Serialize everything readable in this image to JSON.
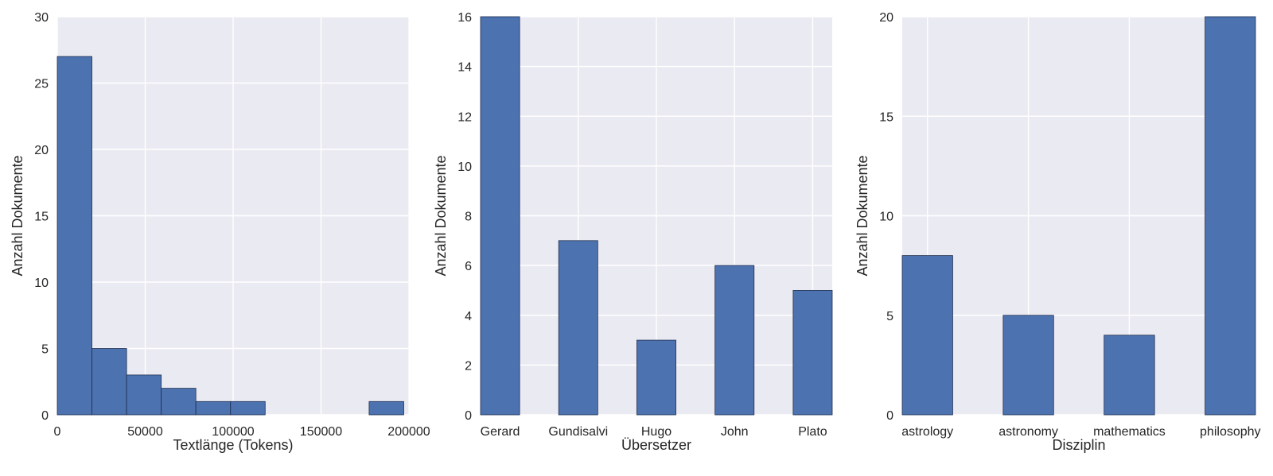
{
  "chart_data": [
    {
      "type": "bar",
      "subtype": "histogram",
      "xlabel": "Textlänge (Tokens)",
      "ylabel": "Anzahl Dokumente",
      "xlim": [
        0,
        200000
      ],
      "ylim": [
        0,
        30
      ],
      "xticks": [
        0,
        50000,
        100000,
        150000,
        200000
      ],
      "yticks": [
        0,
        5,
        10,
        15,
        20,
        25,
        30
      ],
      "bins": [
        {
          "start": 0,
          "end": 19705,
          "value": 27
        },
        {
          "start": 19705,
          "end": 39410,
          "value": 5
        },
        {
          "start": 39410,
          "end": 59115,
          "value": 3
        },
        {
          "start": 59115,
          "end": 78820,
          "value": 2
        },
        {
          "start": 78820,
          "end": 98525,
          "value": 1
        },
        {
          "start": 98525,
          "end": 118230,
          "value": 1
        },
        {
          "start": 118230,
          "end": 137935,
          "value": 0
        },
        {
          "start": 137935,
          "end": 157640,
          "value": 0
        },
        {
          "start": 157640,
          "end": 177345,
          "value": 0
        },
        {
          "start": 177345,
          "end": 197050,
          "value": 1
        }
      ],
      "grid": true,
      "bar_color": "#4c72b0"
    },
    {
      "type": "bar",
      "xlabel": "Übersetzer",
      "ylabel": "Anzahl Dokumente",
      "categories": [
        "Gerard",
        "Gundisalvi",
        "Hugo",
        "John",
        "Plato"
      ],
      "values": [
        16,
        7,
        3,
        6,
        5
      ],
      "ylim": [
        0,
        16
      ],
      "yticks": [
        0,
        2,
        4,
        6,
        8,
        10,
        12,
        14,
        16
      ],
      "grid": true,
      "bar_color": "#4c72b0"
    },
    {
      "type": "bar",
      "xlabel": "Disziplin",
      "ylabel": "Anzahl Dokumente",
      "categories": [
        "astrology",
        "astronomy",
        "mathematics",
        "philosophy"
      ],
      "values": [
        8,
        5,
        4,
        20
      ],
      "ylim": [
        0,
        20
      ],
      "yticks": [
        0,
        5,
        10,
        15,
        20
      ],
      "grid": true,
      "bar_color": "#4c72b0"
    }
  ]
}
